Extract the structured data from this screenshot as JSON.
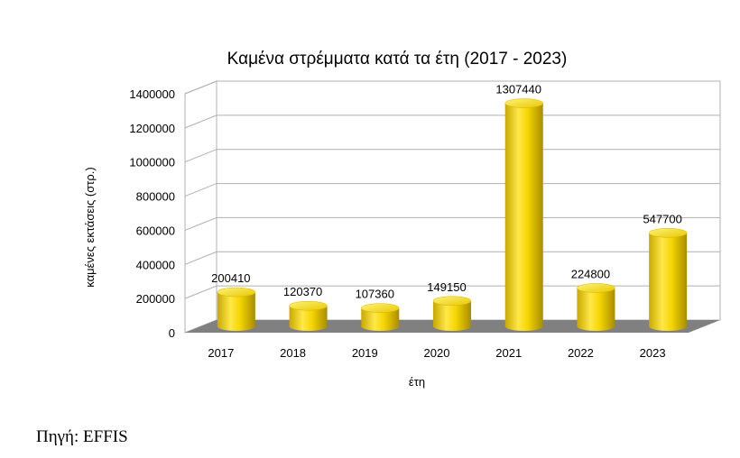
{
  "chart_data": {
    "type": "bar",
    "title": "Καμένα στρέμματα κατά τα έτη (2017 - 2023)",
    "xlabel": "έτη",
    "ylabel": "καμένες εκτάσεις (στρ.)",
    "categories": [
      "2017",
      "2018",
      "2019",
      "2020",
      "2021",
      "2022",
      "2023"
    ],
    "values": [
      200410,
      120370,
      107360,
      149150,
      1307440,
      224800,
      547700
    ],
    "data_labels": [
      "200410",
      "120370",
      "107360",
      "149150",
      "1307440",
      "224800",
      "547700"
    ],
    "ylim": [
      0,
      1400000
    ],
    "yticks": [
      "0",
      "200000",
      "400000",
      "600000",
      "800000",
      "1000000",
      "1200000",
      "1400000"
    ],
    "grid": true,
    "style": "3d-cylinder",
    "colors": {
      "bar": "#f5d800",
      "bar_dark": "#b89a00",
      "floor": "#808080"
    }
  },
  "source": "Πηγή: EFFIS"
}
